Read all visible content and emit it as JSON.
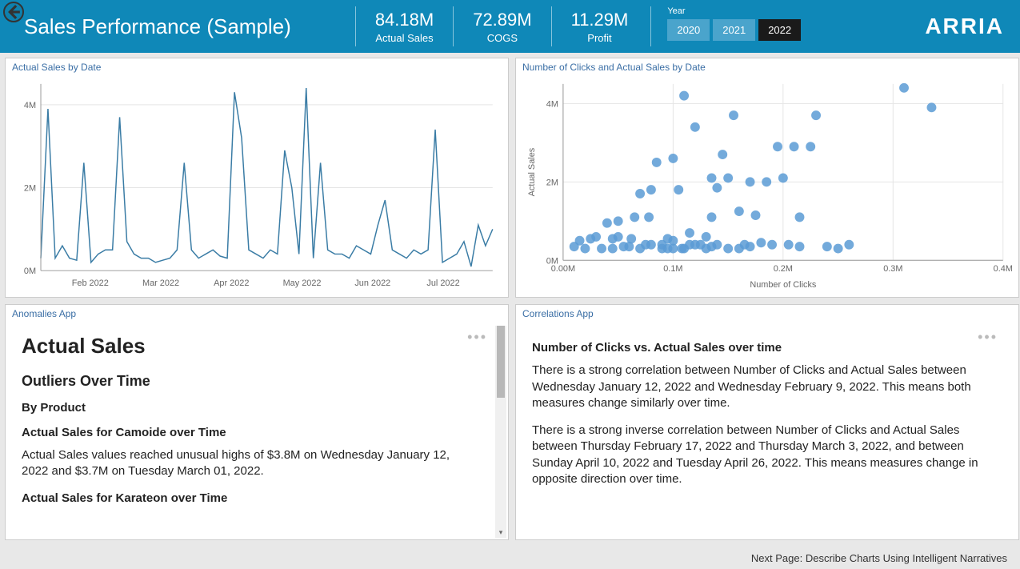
{
  "header": {
    "title": "Sales Performance (Sample)",
    "brand": "ARRIA",
    "kpis": [
      {
        "value": "84.18M",
        "label": "Actual Sales"
      },
      {
        "value": "72.89M",
        "label": "COGS"
      },
      {
        "value": "11.29M",
        "label": "Profit"
      }
    ],
    "year_label": "Year",
    "years": [
      {
        "label": "2020",
        "bg": "#4aa4cc",
        "fg": "#ffffff"
      },
      {
        "label": "2021",
        "bg": "#4aa4cc",
        "fg": "#ffffff"
      },
      {
        "label": "2022",
        "bg": "#1a1a1a",
        "fg": "#ffffff"
      }
    ],
    "header_bg": "#0f88b8"
  },
  "line_chart": {
    "title": "Actual Sales by Date",
    "type": "line",
    "line_color": "#3a7ca5",
    "grid_color": "#e5e5e5",
    "background_color": "#ffffff",
    "y_ticks": [
      0,
      2,
      4
    ],
    "y_tick_labels": [
      "0M",
      "2M",
      "4M"
    ],
    "ylim": [
      0,
      4.5
    ],
    "x_tick_labels": [
      "Feb 2022",
      "Mar 2022",
      "Apr 2022",
      "May 2022",
      "Jun 2022",
      "Jul 2022"
    ],
    "values": [
      0.3,
      3.9,
      0.3,
      0.6,
      0.3,
      0.25,
      2.6,
      0.2,
      0.4,
      0.5,
      0.5,
      3.7,
      0.7,
      0.4,
      0.3,
      0.3,
      0.2,
      0.25,
      0.3,
      0.5,
      2.6,
      0.5,
      0.3,
      0.4,
      0.5,
      0.35,
      0.3,
      4.3,
      3.2,
      0.5,
      0.4,
      0.3,
      0.5,
      0.4,
      2.9,
      2.0,
      0.4,
      4.4,
      0.3,
      2.6,
      0.5,
      0.4,
      0.4,
      0.3,
      0.6,
      0.5,
      0.4,
      1.1,
      1.7,
      0.5,
      0.4,
      0.3,
      0.5,
      0.4,
      0.5,
      3.4,
      0.2,
      0.3,
      0.4,
      0.7,
      0.1,
      1.1,
      0.6,
      1.0
    ]
  },
  "scatter_chart": {
    "title": "Number of Clicks and Actual Sales by Date",
    "type": "scatter",
    "x_label": "Number of Clicks",
    "y_label": "Actual Sales",
    "dot_color": "#5b9bd5",
    "dot_radius": 6,
    "grid_color": "#e5e5e5",
    "background_color": "#ffffff",
    "xlim": [
      0,
      0.4
    ],
    "ylim": [
      0,
      4.5
    ],
    "x_ticks": [
      0.0,
      0.1,
      0.2,
      0.3,
      0.4
    ],
    "x_tick_labels": [
      "0.00M",
      "0.1M",
      "0.2M",
      "0.3M",
      "0.4M"
    ],
    "y_ticks": [
      0,
      2,
      4
    ],
    "y_tick_labels": [
      "0M",
      "2M",
      "4M"
    ],
    "points": [
      [
        0.01,
        0.35
      ],
      [
        0.015,
        0.5
      ],
      [
        0.02,
        0.3
      ],
      [
        0.025,
        0.55
      ],
      [
        0.03,
        0.6
      ],
      [
        0.035,
        0.3
      ],
      [
        0.04,
        0.95
      ],
      [
        0.045,
        0.3
      ],
      [
        0.045,
        0.55
      ],
      [
        0.05,
        0.6
      ],
      [
        0.05,
        1.0
      ],
      [
        0.055,
        0.35
      ],
      [
        0.06,
        0.35
      ],
      [
        0.062,
        0.55
      ],
      [
        0.065,
        1.1
      ],
      [
        0.07,
        0.3
      ],
      [
        0.07,
        1.7
      ],
      [
        0.075,
        0.4
      ],
      [
        0.078,
        1.1
      ],
      [
        0.08,
        0.4
      ],
      [
        0.08,
        1.8
      ],
      [
        0.085,
        2.5
      ],
      [
        0.09,
        0.3
      ],
      [
        0.09,
        0.4
      ],
      [
        0.095,
        0.3
      ],
      [
        0.095,
        0.55
      ],
      [
        0.1,
        0.3
      ],
      [
        0.1,
        0.5
      ],
      [
        0.1,
        2.6
      ],
      [
        0.105,
        1.8
      ],
      [
        0.108,
        0.3
      ],
      [
        0.11,
        0.3
      ],
      [
        0.11,
        4.2
      ],
      [
        0.115,
        0.4
      ],
      [
        0.115,
        0.7
      ],
      [
        0.12,
        0.4
      ],
      [
        0.12,
        3.4
      ],
      [
        0.125,
        0.4
      ],
      [
        0.13,
        0.3
      ],
      [
        0.13,
        0.6
      ],
      [
        0.135,
        0.35
      ],
      [
        0.135,
        1.1
      ],
      [
        0.135,
        2.1
      ],
      [
        0.14,
        0.4
      ],
      [
        0.14,
        1.85
      ],
      [
        0.145,
        2.7
      ],
      [
        0.15,
        0.3
      ],
      [
        0.15,
        2.1
      ],
      [
        0.155,
        3.7
      ],
      [
        0.16,
        0.3
      ],
      [
        0.16,
        1.25
      ],
      [
        0.165,
        0.4
      ],
      [
        0.17,
        0.35
      ],
      [
        0.17,
        2.0
      ],
      [
        0.175,
        1.15
      ],
      [
        0.18,
        0.45
      ],
      [
        0.185,
        2.0
      ],
      [
        0.19,
        0.4
      ],
      [
        0.195,
        2.9
      ],
      [
        0.2,
        2.1
      ],
      [
        0.205,
        0.4
      ],
      [
        0.21,
        2.9
      ],
      [
        0.215,
        0.35
      ],
      [
        0.215,
        1.1
      ],
      [
        0.225,
        2.9
      ],
      [
        0.23,
        3.7
      ],
      [
        0.24,
        0.35
      ],
      [
        0.25,
        0.3
      ],
      [
        0.26,
        0.4
      ],
      [
        0.31,
        4.4
      ],
      [
        0.335,
        3.9
      ]
    ]
  },
  "anomalies": {
    "title": "Anomalies App",
    "h1": "Actual Sales",
    "h2": "Outliers Over Time",
    "h3": "By Product",
    "h4a": "Actual Sales for Camoide over Time",
    "p1": "Actual Sales values reached unusual highs of $3.8M on Wednesday January 12, 2022 and $3.7M on Tuesday March 01, 2022.",
    "h4b": "Actual Sales for Karateon over Time"
  },
  "correlations": {
    "title": "Correlations App",
    "h4": "Number of Clicks vs. Actual Sales over time",
    "p1": "There is a strong correlation between Number of Clicks and Actual Sales between Wednesday January 12, 2022 and Wednesday February 9, 2022. This means both measures change similarly over time.",
    "p2": "There is a strong inverse correlation between Number of Clicks and Actual Sales between Thursday February 17, 2022 and Thursday March 3, 2022, and between Sunday April 10, 2022 and Tuesday April 26, 2022. This means measures change in opposite direction over time."
  },
  "footer": {
    "next_page": "Next Page: Describe Charts Using Intelligent Narratives"
  }
}
